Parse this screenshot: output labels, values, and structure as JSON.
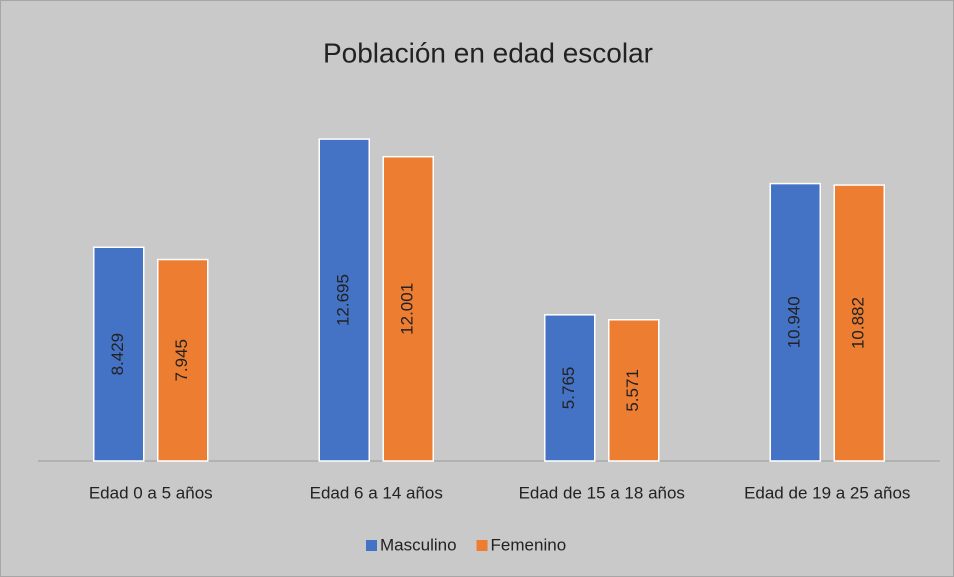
{
  "chart_data": {
    "type": "bar",
    "title": "Población en edad escolar",
    "categories": [
      "Edad 0 a 5 años",
      "Edad 6 a 14 años",
      "Edad de 15 a 18 años",
      "Edad de 19 a 25 años"
    ],
    "series": [
      {
        "name": "Masculino",
        "color": "#4472c4",
        "values": [
          8429,
          12695,
          5765,
          10940
        ],
        "value_labels": [
          "8.429",
          "12.695",
          "5.765",
          "10.940"
        ]
      },
      {
        "name": "Femenino",
        "color": "#ed7d31",
        "values": [
          7945,
          12001,
          5571,
          10882
        ],
        "value_labels": [
          "7.945",
          "12.001",
          "5.571",
          "10.882"
        ]
      }
    ],
    "ylim": [
      0,
      14000
    ],
    "legend": "bottom"
  }
}
